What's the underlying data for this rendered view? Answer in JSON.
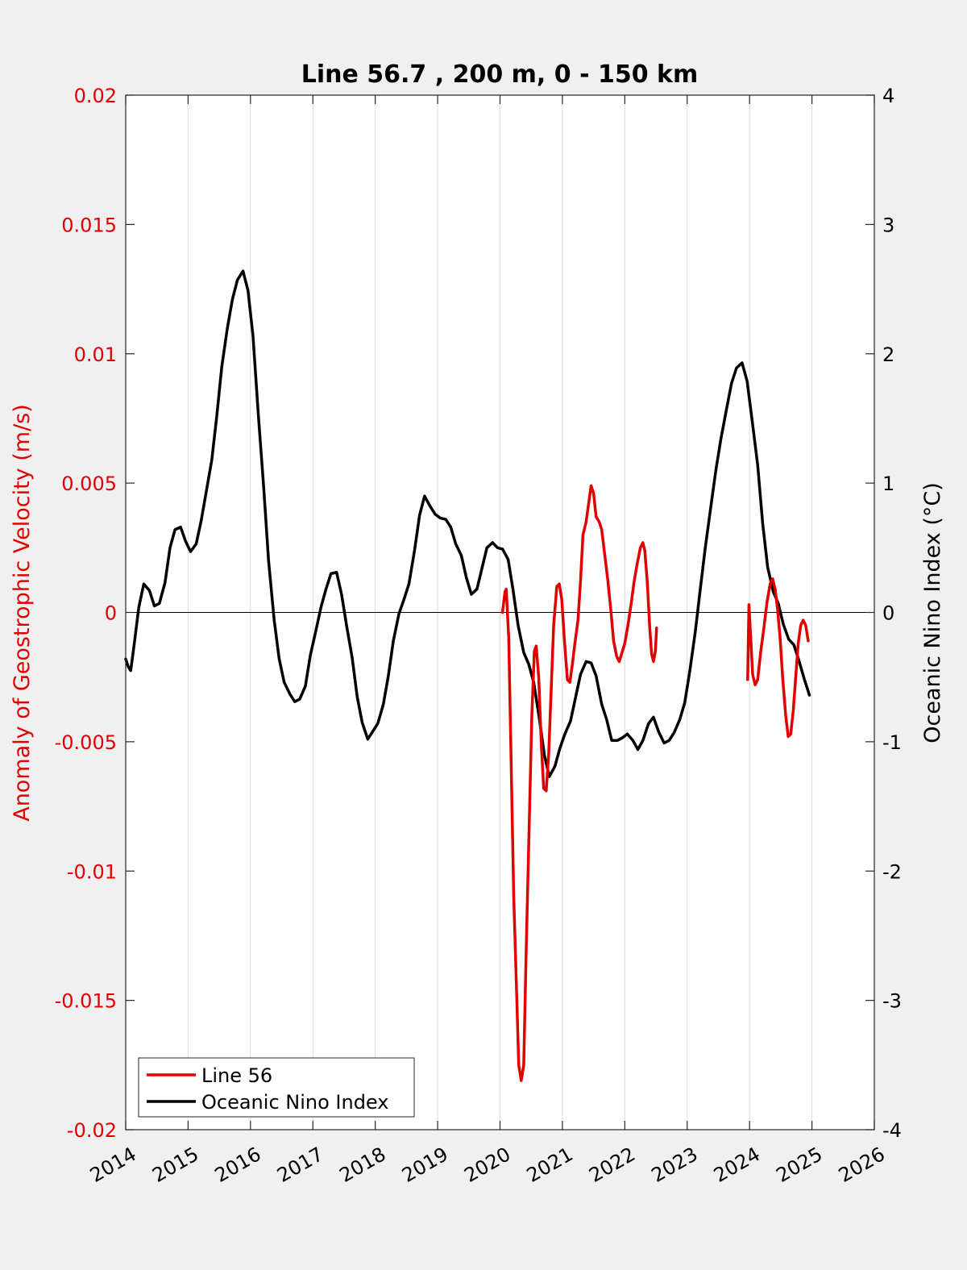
{
  "chart_data": {
    "type": "line",
    "title": "Line 56.7 , 200 m, 0 - 150 km",
    "ylabel_left": "Anomaly of Geostrophic Velocity (m/s)",
    "ylabel_right": "Oceanic Nino Index (°C)",
    "xlim": [
      2014,
      2026
    ],
    "ylim_left": [
      -0.02,
      0.02
    ],
    "ylim_right": [
      -4,
      4
    ],
    "x_ticks": [
      "2014",
      "2015",
      "2016",
      "2017",
      "2018",
      "2019",
      "2020",
      "2021",
      "2022",
      "2023",
      "2024",
      "2025",
      "2026"
    ],
    "y_left_ticks": [
      "0.02",
      "0.015",
      "0.01",
      "0.005",
      "0",
      "-0.005",
      "-0.01",
      "-0.015",
      "-0.02"
    ],
    "y_right_ticks": [
      "4",
      "3",
      "2",
      "1",
      "0",
      "-1",
      "-2",
      "-3",
      "-4"
    ],
    "grid": "vertical",
    "legend_position": "bottom-left",
    "colors": {
      "line56": "#e00000",
      "oni": "#000000",
      "grid": "#dcdcdc",
      "background": "#f0f0f0",
      "plot_bg": "#ffffff"
    },
    "series": [
      {
        "name": "Line 56",
        "axis": "left",
        "color": "#e00000",
        "segments": [
          [
            [
              2020.04,
              0.0
            ],
            [
              2020.08,
              0.0008
            ],
            [
              2020.1,
              0.0009
            ],
            [
              2020.14,
              -0.001
            ],
            [
              2020.18,
              -0.006
            ],
            [
              2020.22,
              -0.011
            ],
            [
              2020.27,
              -0.015
            ],
            [
              2020.3,
              -0.0175
            ],
            [
              2020.34,
              -0.0181
            ],
            [
              2020.38,
              -0.0175
            ],
            [
              2020.42,
              -0.013
            ],
            [
              2020.47,
              -0.008
            ],
            [
              2020.51,
              -0.004
            ],
            [
              2020.55,
              -0.0015
            ],
            [
              2020.58,
              -0.0013
            ],
            [
              2020.62,
              -0.0025
            ],
            [
              2020.66,
              -0.005
            ],
            [
              2020.7,
              -0.0068
            ],
            [
              2020.74,
              -0.0069
            ],
            [
              2020.78,
              -0.0055
            ],
            [
              2020.82,
              -0.003
            ],
            [
              2020.86,
              -0.0005
            ],
            [
              2020.91,
              0.001
            ],
            [
              2020.95,
              0.0011
            ],
            [
              2020.99,
              0.0005
            ],
            [
              2021.03,
              -0.001
            ],
            [
              2021.08,
              -0.0026
            ],
            [
              2021.12,
              -0.0027
            ],
            [
              2021.16,
              -0.002
            ],
            [
              2021.2,
              -0.0012
            ],
            [
              2021.25,
              -0.0003
            ],
            [
              2021.29,
              0.0012
            ],
            [
              2021.33,
              0.003
            ],
            [
              2021.38,
              0.0035
            ],
            [
              2021.42,
              0.0042
            ],
            [
              2021.46,
              0.0049
            ],
            [
              2021.5,
              0.0046
            ],
            [
              2021.54,
              0.0037
            ],
            [
              2021.59,
              0.0035
            ],
            [
              2021.63,
              0.0032
            ],
            [
              2021.68,
              0.0022
            ],
            [
              2021.73,
              0.0012
            ],
            [
              2021.78,
              0.0
            ],
            [
              2021.82,
              -0.0011
            ],
            [
              2021.87,
              -0.0017
            ],
            [
              2021.91,
              -0.0019
            ],
            [
              2021.95,
              -0.0016
            ],
            [
              2022.0,
              -0.0012
            ],
            [
              2022.05,
              -0.0005
            ],
            [
              2022.1,
              0.0003
            ],
            [
              2022.15,
              0.0012
            ],
            [
              2022.2,
              0.0019
            ],
            [
              2022.25,
              0.0025
            ],
            [
              2022.29,
              0.0027
            ],
            [
              2022.32,
              0.0024
            ],
            [
              2022.36,
              0.0012
            ],
            [
              2022.4,
              -0.0006
            ],
            [
              2022.43,
              -0.0016
            ],
            [
              2022.46,
              -0.0019
            ],
            [
              2022.49,
              -0.0015
            ],
            [
              2022.51,
              -0.0006
            ]
          ],
          [
            [
              2023.97,
              -0.0026
            ],
            [
              2023.99,
              0.0003
            ],
            [
              2024.01,
              -0.0006
            ],
            [
              2024.05,
              -0.0024
            ],
            [
              2024.09,
              -0.0028
            ],
            [
              2024.13,
              -0.0026
            ],
            [
              2024.18,
              -0.0015
            ],
            [
              2024.23,
              -0.0006
            ],
            [
              2024.28,
              0.0004
            ],
            [
              2024.33,
              0.0011
            ],
            [
              2024.37,
              0.0013
            ],
            [
              2024.41,
              0.0009
            ],
            [
              2024.45,
              0.0001
            ],
            [
              2024.49,
              -0.001
            ],
            [
              2024.53,
              -0.0025
            ],
            [
              2024.58,
              -0.004
            ],
            [
              2024.62,
              -0.0048
            ],
            [
              2024.66,
              -0.0047
            ],
            [
              2024.7,
              -0.0038
            ],
            [
              2024.74,
              -0.0025
            ],
            [
              2024.78,
              -0.0012
            ],
            [
              2024.82,
              -0.0005
            ],
            [
              2024.86,
              -0.0003
            ],
            [
              2024.9,
              -0.0005
            ],
            [
              2024.94,
              -0.0011
            ]
          ]
        ]
      },
      {
        "name": "Oceanic Nino Index",
        "axis": "right",
        "color": "#000000",
        "segments": [
          [
            [
              2014.0,
              -0.36
            ],
            [
              2014.04,
              -0.42
            ],
            [
              2014.08,
              -0.45
            ],
            [
              2014.13,
              -0.27
            ],
            [
              2014.21,
              0.04
            ],
            [
              2014.29,
              0.22
            ],
            [
              2014.38,
              0.17
            ],
            [
              2014.46,
              0.05
            ],
            [
              2014.54,
              0.07
            ],
            [
              2014.63,
              0.23
            ],
            [
              2014.71,
              0.5
            ],
            [
              2014.79,
              0.64
            ],
            [
              2014.88,
              0.66
            ],
            [
              2014.96,
              0.55
            ],
            [
              2015.04,
              0.47
            ],
            [
              2015.13,
              0.53
            ],
            [
              2015.21,
              0.71
            ],
            [
              2015.29,
              0.93
            ],
            [
              2015.38,
              1.18
            ],
            [
              2015.46,
              1.52
            ],
            [
              2015.54,
              1.9
            ],
            [
              2015.63,
              2.2
            ],
            [
              2015.71,
              2.42
            ],
            [
              2015.79,
              2.57
            ],
            [
              2015.88,
              2.64
            ],
            [
              2015.96,
              2.49
            ],
            [
              2016.04,
              2.14
            ],
            [
              2016.13,
              1.5
            ],
            [
              2016.21,
              0.98
            ],
            [
              2016.29,
              0.4
            ],
            [
              2016.38,
              -0.06
            ],
            [
              2016.46,
              -0.36
            ],
            [
              2016.54,
              -0.54
            ],
            [
              2016.63,
              -0.63
            ],
            [
              2016.71,
              -0.69
            ],
            [
              2016.79,
              -0.67
            ],
            [
              2016.88,
              -0.57
            ],
            [
              2016.96,
              -0.33
            ],
            [
              2017.04,
              -0.16
            ],
            [
              2017.13,
              0.04
            ],
            [
              2017.21,
              0.18
            ],
            [
              2017.29,
              0.3
            ],
            [
              2017.38,
              0.31
            ],
            [
              2017.46,
              0.14
            ],
            [
              2017.54,
              -0.1
            ],
            [
              2017.63,
              -0.35
            ],
            [
              2017.71,
              -0.65
            ],
            [
              2017.79,
              -0.85
            ],
            [
              2017.88,
              -0.98
            ],
            [
              2017.96,
              -0.92
            ],
            [
              2018.04,
              -0.86
            ],
            [
              2018.13,
              -0.71
            ],
            [
              2018.21,
              -0.49
            ],
            [
              2018.29,
              -0.22
            ],
            [
              2018.38,
              -0.01
            ],
            [
              2018.46,
              0.1
            ],
            [
              2018.54,
              0.22
            ],
            [
              2018.63,
              0.48
            ],
            [
              2018.71,
              0.75
            ],
            [
              2018.79,
              0.9
            ],
            [
              2018.88,
              0.82
            ],
            [
              2018.96,
              0.76
            ],
            [
              2019.04,
              0.73
            ],
            [
              2019.13,
              0.72
            ],
            [
              2019.21,
              0.66
            ],
            [
              2019.29,
              0.53
            ],
            [
              2019.38,
              0.44
            ],
            [
              2019.46,
              0.27
            ],
            [
              2019.54,
              0.14
            ],
            [
              2019.63,
              0.18
            ],
            [
              2019.71,
              0.34
            ],
            [
              2019.79,
              0.5
            ],
            [
              2019.88,
              0.54
            ],
            [
              2019.96,
              0.5
            ],
            [
              2020.04,
              0.49
            ],
            [
              2020.13,
              0.41
            ],
            [
              2020.21,
              0.17
            ],
            [
              2020.29,
              -0.1
            ],
            [
              2020.38,
              -0.31
            ],
            [
              2020.46,
              -0.4
            ],
            [
              2020.54,
              -0.54
            ],
            [
              2020.63,
              -0.82
            ],
            [
              2020.71,
              -1.1
            ],
            [
              2020.79,
              -1.27
            ],
            [
              2020.88,
              -1.19
            ],
            [
              2020.96,
              -1.05
            ],
            [
              2021.04,
              -0.94
            ],
            [
              2021.13,
              -0.84
            ],
            [
              2021.21,
              -0.66
            ],
            [
              2021.29,
              -0.48
            ],
            [
              2021.38,
              -0.38
            ],
            [
              2021.46,
              -0.39
            ],
            [
              2021.54,
              -0.49
            ],
            [
              2021.63,
              -0.71
            ],
            [
              2021.71,
              -0.83
            ],
            [
              2021.79,
              -0.99
            ],
            [
              2021.88,
              -0.99
            ],
            [
              2021.96,
              -0.97
            ],
            [
              2022.04,
              -0.94
            ],
            [
              2022.13,
              -0.99
            ],
            [
              2022.21,
              -1.06
            ],
            [
              2022.29,
              -0.99
            ],
            [
              2022.38,
              -0.86
            ],
            [
              2022.46,
              -0.81
            ],
            [
              2022.54,
              -0.92
            ],
            [
              2022.63,
              -1.01
            ],
            [
              2022.71,
              -0.99
            ],
            [
              2022.79,
              -0.93
            ],
            [
              2022.88,
              -0.83
            ],
            [
              2022.96,
              -0.7
            ],
            [
              2023.04,
              -0.46
            ],
            [
              2023.13,
              -0.15
            ],
            [
              2023.21,
              0.18
            ],
            [
              2023.29,
              0.5
            ],
            [
              2023.38,
              0.82
            ],
            [
              2023.46,
              1.1
            ],
            [
              2023.54,
              1.34
            ],
            [
              2023.63,
              1.57
            ],
            [
              2023.71,
              1.77
            ],
            [
              2023.79,
              1.89
            ],
            [
              2023.88,
              1.93
            ],
            [
              2023.96,
              1.79
            ],
            [
              2024.04,
              1.49
            ],
            [
              2024.13,
              1.14
            ],
            [
              2024.21,
              0.69
            ],
            [
              2024.29,
              0.35
            ],
            [
              2024.38,
              0.16
            ],
            [
              2024.46,
              0.07
            ],
            [
              2024.54,
              -0.09
            ],
            [
              2024.63,
              -0.21
            ],
            [
              2024.71,
              -0.25
            ],
            [
              2024.79,
              -0.37
            ],
            [
              2024.88,
              -0.52
            ],
            [
              2024.96,
              -0.64
            ]
          ]
        ]
      }
    ]
  }
}
